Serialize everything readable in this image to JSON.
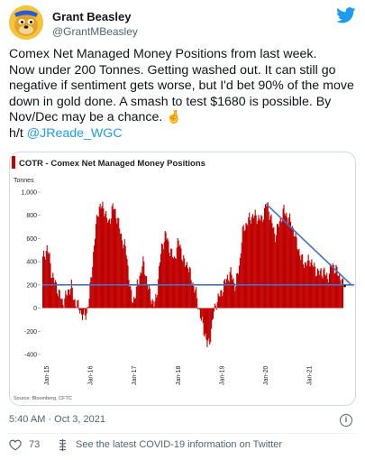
{
  "author": {
    "name": "Grant Beasley",
    "handle": "@GrantMBeasley"
  },
  "tweet": {
    "text": "Comex Net Managed Money Positions from last week.\nNow under 200 Tonnes.  Getting washed out.  It can still go negative if sentiment gets worse, but I'd bet 90% of the move down in gold done.  A smash to test $1680 is possible. By Nov/Dec may be a chance. ",
    "emoji": "🤞",
    "hat_tip": "h/t ",
    "mention": "@JReade_WGC"
  },
  "timestamp": "5:40 AM · Oct 3, 2021",
  "info_glyph": "i",
  "likes": "73",
  "covid_text": "See the latest COVID-19 information on Twitter",
  "colors": {
    "accent": "#1d9bf0",
    "bars": "#c00000",
    "trend_line": "#4472c4"
  },
  "chart_data": {
    "type": "area",
    "title": "COTR - Comex Net Managed Money Positions",
    "ylabel": "Tonnes",
    "ylim": [
      -400,
      1000
    ],
    "yticks": [
      "1,000",
      "800",
      "600",
      "400",
      "200",
      "0",
      "-200",
      "-400"
    ],
    "xticks": [
      "Jan-15",
      "Jan-16",
      "Jan-17",
      "Jan-18",
      "Jan-19",
      "Jan-20",
      "Jan-21"
    ],
    "source": "Source: Bloomberg, CFTC",
    "x_start": 2014.9,
    "x_end": 2021.85,
    "series": [
      {
        "x": [
          2014.9,
          2015.0,
          2015.05,
          2015.1,
          2015.2,
          2015.3,
          2015.35,
          2015.45,
          2015.55,
          2015.6,
          2015.7,
          2015.8,
          2015.85,
          2015.9,
          2015.95,
          2016.0,
          2016.05,
          2016.1,
          2016.15,
          2016.2,
          2016.3,
          2016.4,
          2016.5,
          2016.6,
          2016.7,
          2016.8,
          2016.85,
          2016.9,
          2016.95,
          2017.0,
          2017.1,
          2017.2,
          2017.3,
          2017.4,
          2017.45,
          2017.5,
          2017.6,
          2017.7,
          2017.75,
          2017.8,
          2017.9,
          2018.0,
          2018.05,
          2018.1,
          2018.2,
          2018.3,
          2018.4,
          2018.5,
          2018.6,
          2018.65,
          2018.7,
          2018.75,
          2018.8,
          2018.85,
          2018.9,
          2018.95,
          2019.0,
          2019.1,
          2019.2,
          2019.3,
          2019.4,
          2019.45,
          2019.5,
          2019.6,
          2019.7,
          2019.8,
          2019.9,
          2020.0,
          2020.05,
          2020.1,
          2020.2,
          2020.3,
          2020.4,
          2020.5,
          2020.6,
          2020.7,
          2020.8,
          2020.9,
          2021.0,
          2021.1,
          2021.2,
          2021.3,
          2021.4,
          2021.5,
          2021.6,
          2021.7,
          2021.75
        ],
        "values": [
          420,
          520,
          440,
          300,
          200,
          100,
          40,
          120,
          200,
          80,
          20,
          -60,
          -80,
          -40,
          60,
          250,
          450,
          650,
          820,
          880,
          860,
          720,
          880,
          780,
          600,
          500,
          330,
          140,
          60,
          100,
          260,
          400,
          180,
          60,
          20,
          120,
          500,
          640,
          580,
          500,
          420,
          580,
          520,
          400,
          380,
          240,
          120,
          -80,
          -220,
          -320,
          -300,
          -180,
          -40,
          40,
          80,
          120,
          160,
          260,
          300,
          180,
          420,
          640,
          700,
          760,
          800,
          780,
          760,
          900,
          860,
          780,
          620,
          740,
          840,
          780,
          700,
          560,
          420,
          380,
          420,
          340,
          300,
          320,
          260,
          380,
          320,
          260,
          190
        ]
      }
    ],
    "annotations": {
      "horizontal_line_value": 200,
      "trend_line": {
        "from": [
          2020.0,
          900
        ],
        "to": [
          2021.95,
          200
        ]
      }
    }
  }
}
